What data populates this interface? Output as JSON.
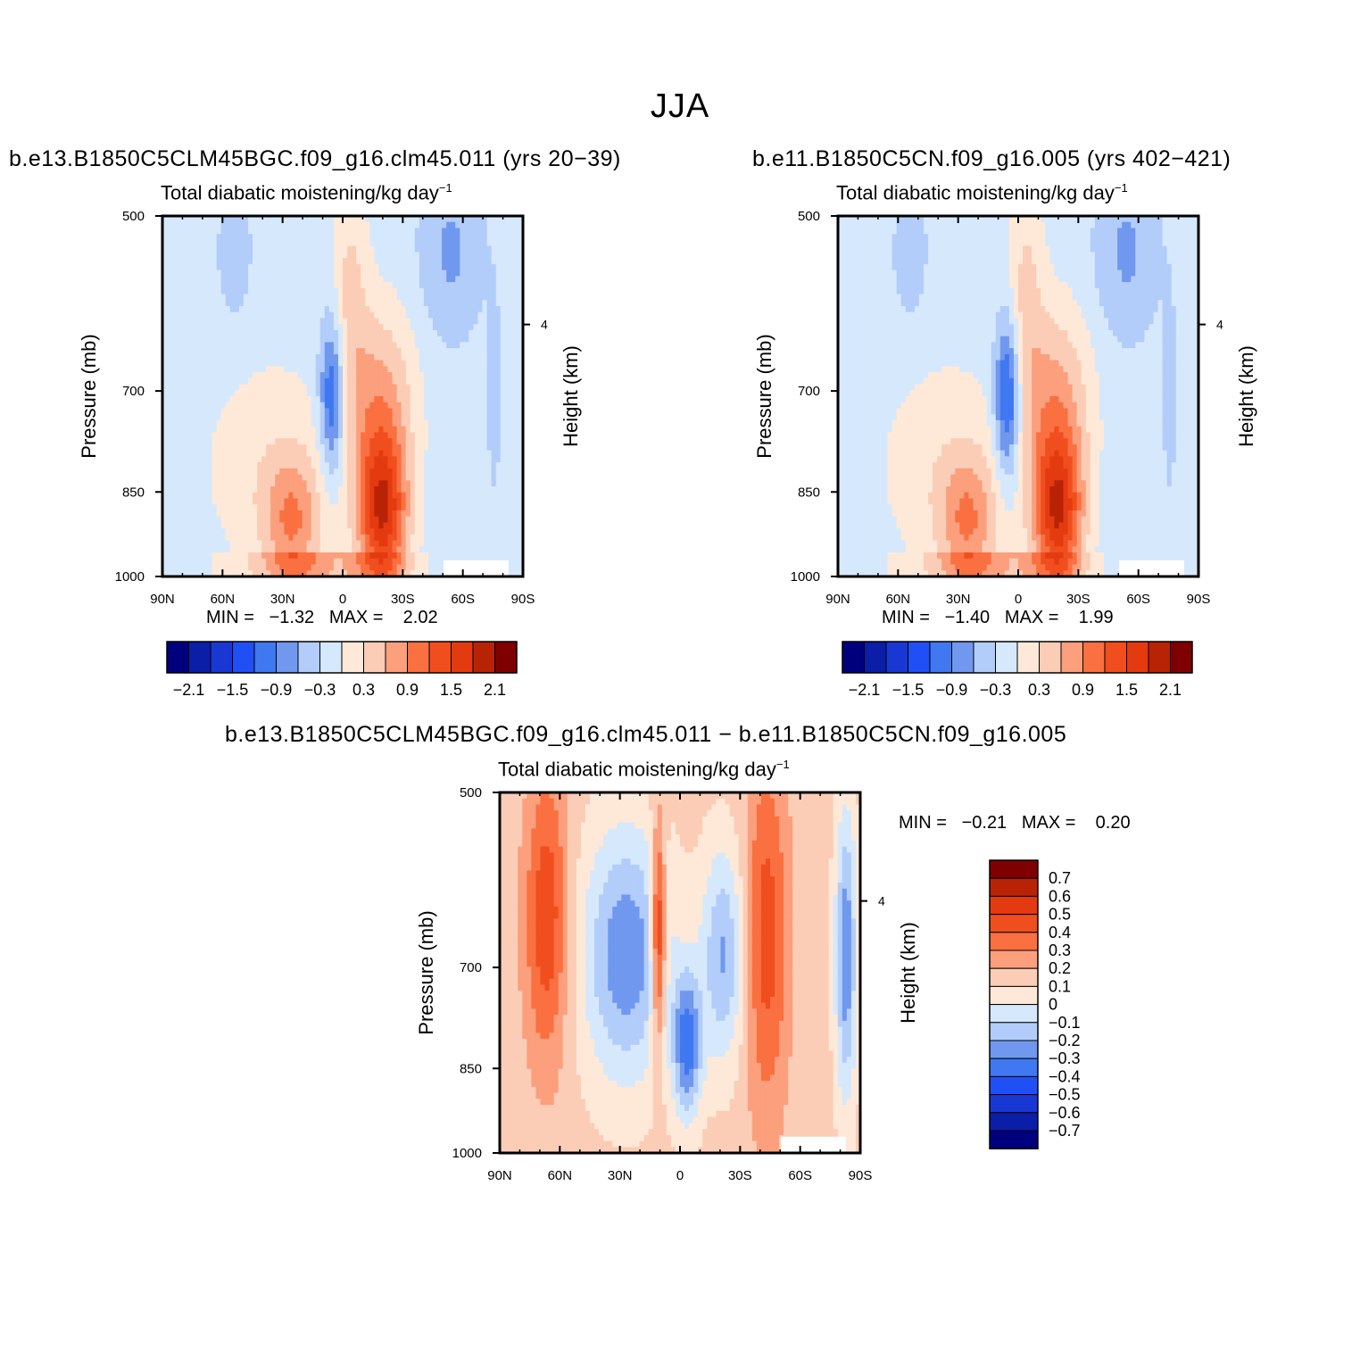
{
  "figure_title": "JJA",
  "colors": {
    "n7": "#00007f",
    "n6": "#0a1ea8",
    "n5": "#1937d3",
    "n4": "#2050f5",
    "n3": "#4078f2",
    "n2": "#7098ef",
    "n1": "#b2cdfa",
    "n0": "#d6e8fc",
    "p0": "#fee9d8",
    "p1": "#fccdb6",
    "p2": "#fb9f7d",
    "p3": "#fa7040",
    "p4": "#f04e1f",
    "p5": "#e43a10",
    "p6": "#b82306",
    "p7": "#7f0000"
  },
  "panels": [
    {
      "case_title": "b.e13.B1850C5CLM45BGC.f09_g16.clm45.011 (yrs 20−39)",
      "plot_title_main": "Total diabatic moistening/kg day",
      "plot_title_exp": "−1",
      "ylabel": "Pressure (mb)",
      "ylabel_right": "Height (km)",
      "min_label": "MIN =",
      "min_value": "−1.32",
      "max_label": "MAX =",
      "max_value": "2.02"
    },
    {
      "case_title": "b.e11.B1850C5CN.f09_g16.005 (yrs 402−421)",
      "plot_title_main": "Total diabatic moistening/kg day",
      "plot_title_exp": "−1",
      "ylabel": "Pressure (mb)",
      "ylabel_right": "Height (km)",
      "min_label": "MIN =",
      "min_value": "−1.40",
      "max_label": "MAX =",
      "max_value": "1.99"
    },
    {
      "case_title": "b.e13.B1850C5CLM45BGC.f09_g16.clm45.011 − b.e11.B1850C5CN.f09_g16.005",
      "plot_title_main": "Total diabatic moistening/kg day",
      "plot_title_exp": "−1",
      "ylabel": "Pressure (mb)",
      "ylabel_right": "Height (km)",
      "min_label": "MIN =",
      "min_value": "−0.21",
      "max_label": "MAX =",
      "max_value": "0.20"
    }
  ],
  "chart_data": [
    {
      "type": "heatmap",
      "panel": "left",
      "x_tick_labels": [
        "90N",
        "60N",
        "30N",
        "0",
        "30S",
        "60S",
        "90S"
      ],
      "x_values": [
        90,
        60,
        30,
        0,
        -30,
        -60,
        -90
      ],
      "y_tick_labels": [
        "500",
        "700",
        "850",
        "1000"
      ],
      "y_values": [
        500,
        700,
        850,
        1000
      ],
      "y_scale": "log",
      "right_axis_ticks": [
        "4"
      ],
      "colorbar_orientation": "horizontal",
      "colorbar_labels": [
        "−2.1",
        "−1.5",
        "−0.9",
        "−0.3",
        "0.3",
        "0.9",
        "1.5",
        "2.1"
      ],
      "colorbar_levels": [
        -2.1,
        -1.8,
        -1.5,
        -1.2,
        -0.9,
        -0.6,
        -0.3,
        0,
        0.3,
        0.6,
        0.9,
        1.2,
        1.5,
        1.8,
        2.1
      ],
      "min": -1.32,
      "max": 2.02
    },
    {
      "type": "heatmap",
      "panel": "right",
      "x_tick_labels": [
        "90N",
        "60N",
        "30N",
        "0",
        "30S",
        "60S",
        "90S"
      ],
      "x_values": [
        90,
        60,
        30,
        0,
        -30,
        -60,
        -90
      ],
      "y_tick_labels": [
        "500",
        "700",
        "850",
        "1000"
      ],
      "y_values": [
        500,
        700,
        850,
        1000
      ],
      "y_scale": "log",
      "right_axis_ticks": [
        "4"
      ],
      "colorbar_orientation": "horizontal",
      "colorbar_labels": [
        "−2.1",
        "−1.5",
        "−0.9",
        "−0.3",
        "0.3",
        "0.9",
        "1.5",
        "2.1"
      ],
      "colorbar_levels": [
        -2.1,
        -1.8,
        -1.5,
        -1.2,
        -0.9,
        -0.6,
        -0.3,
        0,
        0.3,
        0.6,
        0.9,
        1.2,
        1.5,
        1.8,
        2.1
      ],
      "min": -1.4,
      "max": 1.99
    },
    {
      "type": "heatmap",
      "panel": "difference",
      "x_tick_labels": [
        "90N",
        "60N",
        "30N",
        "0",
        "30S",
        "60S",
        "90S"
      ],
      "x_values": [
        90,
        60,
        30,
        0,
        -30,
        -60,
        -90
      ],
      "y_tick_labels": [
        "500",
        "700",
        "850",
        "1000"
      ],
      "y_values": [
        500,
        700,
        850,
        1000
      ],
      "y_scale": "log",
      "right_axis_ticks": [
        "4"
      ],
      "colorbar_orientation": "vertical",
      "colorbar_labels": [
        "0.7",
        "0.6",
        "0.5",
        "0.4",
        "0.3",
        "0.2",
        "0.1",
        "0",
        "−0.1",
        "−0.2",
        "−0.3",
        "−0.4",
        "−0.5",
        "−0.6",
        "−0.7"
      ],
      "min": -0.21,
      "max": 0.2
    }
  ]
}
